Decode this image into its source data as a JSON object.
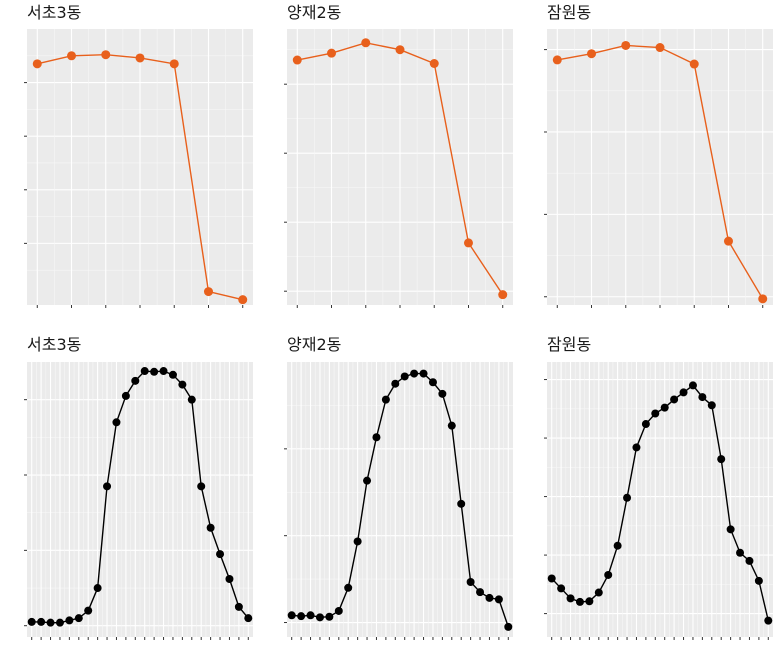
{
  "chart_data": [
    {
      "type": "line",
      "title": "서초3동",
      "color": "#E8601C",
      "x": [
        1,
        2,
        3,
        4,
        5,
        6,
        7
      ],
      "series": [
        {
          "values": [
            4.35,
            4.5,
            4.52,
            4.46,
            4.35,
            0.1,
            -0.05
          ]
        }
      ],
      "xlim": [
        0.7,
        7.3
      ],
      "ylim": [
        -0.15,
        5.0
      ],
      "yticks": [
        1,
        2,
        3,
        4
      ],
      "grid": true,
      "point_size": 4.5
    },
    {
      "type": "line",
      "title": "양재2동",
      "color": "#E8601C",
      "x": [
        1,
        2,
        3,
        4,
        5,
        6,
        7
      ],
      "series": [
        {
          "values": [
            3.35,
            3.45,
            3.6,
            3.5,
            3.3,
            0.7,
            -0.05
          ]
        }
      ],
      "xlim": [
        0.7,
        7.3
      ],
      "ylim": [
        -0.2,
        3.8
      ],
      "yticks": [
        0,
        1,
        2,
        3
      ],
      "grid": true,
      "point_size": 4.5
    },
    {
      "type": "line",
      "title": "잠원동",
      "color": "#E8601C",
      "x": [
        1,
        2,
        3,
        4,
        5,
        6,
        7
      ],
      "series": [
        {
          "values": [
            5.75,
            5.9,
            6.1,
            6.05,
            5.65,
            1.35,
            -0.05
          ]
        }
      ],
      "xlim": [
        0.7,
        7.3
      ],
      "ylim": [
        -0.2,
        6.5
      ],
      "yticks": [
        0,
        2,
        4,
        6
      ],
      "grid": true,
      "point_size": 4.5
    },
    {
      "type": "line",
      "title": "서초3동",
      "color": "#000000",
      "x": [
        0,
        1,
        2,
        3,
        4,
        5,
        6,
        7,
        8,
        9,
        10,
        11,
        12,
        13,
        14,
        15,
        16,
        17,
        18,
        19,
        20,
        21,
        22,
        23
      ],
      "series": [
        {
          "values": [
            0.05,
            0.05,
            0.04,
            0.04,
            0.07,
            0.1,
            0.2,
            0.5,
            1.85,
            2.7,
            3.05,
            3.25,
            3.38,
            3.37,
            3.38,
            3.33,
            3.2,
            3.0,
            1.85,
            1.3,
            0.95,
            0.62,
            0.25,
            0.1
          ]
        }
      ],
      "xlim": [
        -0.5,
        23.5
      ],
      "ylim": [
        -0.15,
        3.5
      ],
      "yticks": [
        0,
        1,
        2,
        3
      ],
      "grid": true,
      "point_size": 4.0
    },
    {
      "type": "line",
      "title": "양재2동",
      "color": "#000000",
      "x": [
        0,
        1,
        2,
        3,
        4,
        5,
        6,
        7,
        8,
        9,
        10,
        11,
        12,
        13,
        14,
        15,
        16,
        17,
        18,
        19,
        20,
        21,
        22,
        23
      ],
      "series": [
        {
          "values": [
            0.25,
            0.22,
            0.25,
            0.18,
            0.2,
            0.4,
            1.2,
            2.8,
            4.9,
            6.4,
            7.7,
            8.25,
            8.5,
            8.6,
            8.6,
            8.3,
            7.9,
            6.8,
            4.1,
            1.4,
            1.05,
            0.85,
            0.8,
            -0.15
          ]
        }
      ],
      "xlim": [
        -0.5,
        23.5
      ],
      "ylim": [
        -0.5,
        9.0
      ],
      "yticks": [
        0,
        3,
        6
      ],
      "grid": true,
      "point_size": 4.0
    },
    {
      "type": "line",
      "title": "잠원동",
      "color": "#000000",
      "x": [
        0,
        1,
        2,
        3,
        4,
        5,
        6,
        7,
        8,
        9,
        10,
        11,
        12,
        13,
        14,
        15,
        16,
        17,
        18,
        19,
        20,
        21,
        22,
        23
      ],
      "series": [
        {
          "values": [
            3.0,
            2.15,
            1.3,
            1.0,
            1.05,
            1.8,
            3.3,
            5.8,
            9.9,
            14.2,
            16.2,
            17.1,
            17.6,
            18.3,
            18.9,
            19.5,
            18.5,
            17.8,
            13.2,
            7.2,
            5.2,
            4.5,
            2.8,
            -0.6
          ]
        }
      ],
      "xlim": [
        -0.5,
        23.5
      ],
      "ylim": [
        -2.0,
        21.5
      ],
      "yticks": [
        0,
        5,
        10,
        15,
        20
      ],
      "grid": true,
      "point_size": 4.0
    }
  ]
}
